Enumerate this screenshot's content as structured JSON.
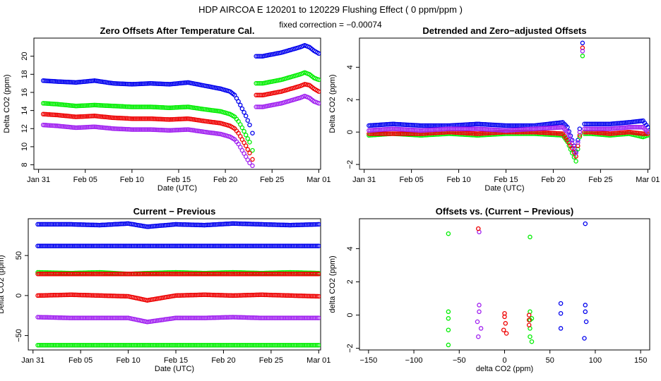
{
  "figure": {
    "title": "HDP    AIRCOA E    120201 to 120229    Flushing Effect ( 0 ppm/ppm )",
    "subtitle": "fixed correction = −0.00074"
  },
  "colors": {
    "blue": "#0000ee",
    "green": "#00ee00",
    "red": "#ee0000",
    "purple": "#a020f0"
  },
  "chart_data": [
    {
      "id": "p1",
      "type": "scatter",
      "title": "Zero Offsets After Temperature Cal.",
      "xlabel": "Date (UTC)",
      "ylabel": "Delta CO2 (ppm)",
      "xlim": [
        30.5,
        61.2
      ],
      "ylim": [
        7.5,
        22.0
      ],
      "xticks": [
        31,
        36,
        41,
        46,
        51,
        56,
        61
      ],
      "xticklabels": [
        "Jan 31",
        "Feb 05",
        "Feb 10",
        "Feb 15",
        "Feb 20",
        "Feb 25",
        "Mar 01"
      ],
      "yticks": [
        8,
        10,
        12,
        14,
        16,
        18,
        20
      ],
      "yticklabels": [
        "8",
        "10",
        "12",
        "14",
        "16",
        "18",
        "20"
      ],
      "series": [
        {
          "name": "blue",
          "color": "blue",
          "x": [
            31.5,
            33,
            35,
            37,
            39,
            41,
            43,
            45,
            47,
            49,
            50.5,
            51.5,
            52,
            52.4,
            52.8,
            53.2,
            53.6,
            53.9,
            54.3,
            55,
            56,
            57,
            58,
            59,
            59.5,
            60,
            60.5,
            61
          ],
          "y": [
            17.3,
            17.2,
            17.1,
            17.3,
            17.0,
            16.9,
            17.0,
            16.9,
            17.1,
            16.7,
            16.4,
            16.1,
            15.7,
            15.0,
            14.2,
            13.4,
            12.4,
            11.5,
            20.0,
            20.0,
            20.2,
            20.4,
            20.7,
            21.0,
            21.2,
            21.0,
            20.6,
            20.3
          ]
        },
        {
          "name": "green",
          "color": "green",
          "x": [
            31.5,
            33,
            35,
            37,
            39,
            41,
            43,
            45,
            47,
            49,
            50.5,
            51.5,
            52,
            52.4,
            52.8,
            53.2,
            53.6,
            53.9,
            54.3,
            55,
            56,
            57,
            58,
            59,
            59.5,
            60,
            60.5,
            61
          ],
          "y": [
            14.8,
            14.7,
            14.5,
            14.6,
            14.5,
            14.4,
            14.4,
            14.3,
            14.4,
            14.1,
            13.9,
            13.6,
            13.3,
            12.8,
            12.1,
            11.3,
            10.5,
            9.6,
            17.0,
            17.0,
            17.2,
            17.4,
            17.7,
            18.0,
            18.2,
            18.0,
            17.6,
            17.4
          ]
        },
        {
          "name": "red",
          "color": "red",
          "x": [
            31.5,
            33,
            35,
            37,
            39,
            41,
            43,
            45,
            47,
            49,
            50.5,
            51.5,
            52,
            52.4,
            52.8,
            53.2,
            53.6,
            53.9,
            54.3,
            55,
            56,
            57,
            58,
            59,
            59.5,
            60,
            60.5,
            61
          ],
          "y": [
            13.6,
            13.5,
            13.3,
            13.4,
            13.2,
            13.1,
            13.1,
            13.0,
            13.1,
            12.8,
            12.6,
            12.3,
            12.0,
            11.5,
            10.8,
            10.1,
            9.3,
            8.6,
            15.7,
            15.7,
            15.9,
            16.1,
            16.4,
            16.7,
            16.9,
            16.8,
            16.4,
            16.1
          ]
        },
        {
          "name": "purple",
          "color": "purple",
          "x": [
            31.5,
            33,
            35,
            37,
            39,
            41,
            43,
            45,
            47,
            49,
            50.5,
            51.5,
            52,
            52.4,
            52.8,
            53.2,
            53.6,
            53.9,
            54.3,
            55,
            56,
            57,
            58,
            59,
            59.5,
            60,
            60.5,
            61
          ],
          "y": [
            12.4,
            12.3,
            12.1,
            12.2,
            12.0,
            11.9,
            11.9,
            11.8,
            11.9,
            11.6,
            11.4,
            11.1,
            10.8,
            10.3,
            9.6,
            8.9,
            8.2,
            7.9,
            14.4,
            14.4,
            14.6,
            14.8,
            15.1,
            15.4,
            15.6,
            15.4,
            15.0,
            14.8
          ]
        }
      ]
    },
    {
      "id": "p2",
      "type": "scatter",
      "title": "Detrended and Zero−adjusted Offsets",
      "xlabel": "Date (UTC)",
      "ylabel": "Delta CO2 (ppm)",
      "xlim": [
        30.5,
        61.2
      ],
      "ylim": [
        -2.3,
        5.8
      ],
      "xticks": [
        31,
        36,
        41,
        46,
        51,
        56,
        61
      ],
      "xticklabels": [
        "Jan 31",
        "Feb 05",
        "Feb 10",
        "Feb 15",
        "Feb 20",
        "Feb 25",
        "Mar 01"
      ],
      "yticks": [
        -2,
        0,
        2,
        4
      ],
      "yticklabels": [
        "−2",
        "0",
        "2",
        "4"
      ],
      "series": [
        {
          "name": "blue",
          "color": "blue",
          "x": [
            31.5,
            34,
            37,
            40,
            43,
            46,
            49,
            52,
            52.5,
            53,
            53.4,
            53.8,
            54.1,
            54.3,
            55,
            57,
            59,
            60.5,
            61
          ],
          "y": [
            0.4,
            0.5,
            0.4,
            0.4,
            0.5,
            0.4,
            0.4,
            0.6,
            0.3,
            -0.5,
            -1.2,
            0.2,
            5.5,
            0.5,
            0.5,
            0.5,
            0.6,
            0.7,
            0.3
          ]
        },
        {
          "name": "green",
          "color": "green",
          "x": [
            31.5,
            34,
            37,
            40,
            43,
            46,
            49,
            52,
            52.5,
            53,
            53.4,
            53.8,
            54.1,
            54.3,
            55,
            57,
            59,
            60.5,
            61
          ],
          "y": [
            -0.2,
            -0.1,
            -0.2,
            -0.1,
            -0.2,
            -0.1,
            -0.1,
            -0.2,
            -0.6,
            -1.3,
            -1.8,
            -0.3,
            4.7,
            -0.1,
            -0.1,
            -0.2,
            -0.1,
            -0.3,
            -0.2
          ]
        },
        {
          "name": "red",
          "color": "red",
          "x": [
            31.5,
            34,
            37,
            40,
            43,
            46,
            49,
            52,
            52.5,
            53,
            53.4,
            53.8,
            54.1,
            54.3,
            55,
            57,
            59,
            60.5,
            61
          ],
          "y": [
            -0.1,
            -0.1,
            -0.1,
            0.0,
            -0.1,
            0.0,
            0.0,
            -0.1,
            -0.5,
            -1.0,
            -1.5,
            -0.2,
            5.2,
            0.0,
            0.0,
            -0.1,
            0.0,
            -0.1,
            -0.1
          ]
        },
        {
          "name": "purple",
          "color": "purple",
          "x": [
            31.5,
            34,
            37,
            40,
            43,
            46,
            49,
            52,
            52.5,
            53,
            53.4,
            53.8,
            54.1,
            54.3,
            55,
            57,
            59,
            60.5,
            61
          ],
          "y": [
            0.1,
            0.2,
            0.1,
            0.2,
            0.2,
            0.1,
            0.2,
            0.3,
            0.0,
            -0.7,
            -1.3,
            0.0,
            5.0,
            0.2,
            0.2,
            0.2,
            0.3,
            0.3,
            0.0
          ]
        }
      ]
    },
    {
      "id": "p3",
      "type": "scatter",
      "title": "Current − Previous",
      "xlabel": "Date (UTC)",
      "ylabel": "Delta CO2 (ppm)",
      "xlim": [
        30.5,
        61.2
      ],
      "ylim": [
        -68,
        96
      ],
      "xticks": [
        31,
        36,
        41,
        46,
        51,
        56,
        61
      ],
      "xticklabels": [
        "Jan 31",
        "Feb 05",
        "Feb 10",
        "Feb 15",
        "Feb 20",
        "Feb 25",
        "Mar 01"
      ],
      "yticks": [
        -50,
        0,
        50
      ],
      "yticklabels": [
        "−50",
        "0",
        "50"
      ],
      "series": [
        {
          "name": "blue",
          "color": "blue",
          "x": [
            31.5,
            35,
            38,
            41,
            43,
            46,
            49,
            52,
            55,
            58,
            61
          ],
          "y": [
            89,
            89,
            88,
            90,
            86,
            89,
            88,
            90,
            89,
            88,
            89
          ]
        },
        {
          "name": "blue-2",
          "color": "blue",
          "x": [
            31.5,
            35,
            38,
            41,
            43,
            46,
            49,
            52,
            55,
            58,
            61
          ],
          "y": [
            62,
            62,
            62,
            62,
            62,
            62,
            62,
            62,
            62,
            62,
            62
          ]
        },
        {
          "name": "green",
          "color": "green",
          "x": [
            31.5,
            35,
            38,
            41,
            43,
            46,
            49,
            52,
            55,
            58,
            61
          ],
          "y": [
            29,
            28,
            29,
            27,
            28,
            29,
            28,
            29,
            28,
            29,
            28
          ]
        },
        {
          "name": "red-2",
          "color": "red",
          "x": [
            31.5,
            35,
            38,
            41,
            43,
            46,
            49,
            52,
            55,
            58,
            61
          ],
          "y": [
            27,
            27,
            27,
            27,
            27,
            27,
            27,
            27,
            27,
            27,
            27
          ]
        },
        {
          "name": "red",
          "color": "red",
          "x": [
            31.5,
            35,
            38,
            41,
            43,
            46,
            49,
            52,
            55,
            58,
            61
          ],
          "y": [
            0,
            1,
            0,
            -1,
            -6,
            0,
            1,
            0,
            1,
            0,
            -1
          ]
        },
        {
          "name": "purple",
          "color": "purple",
          "x": [
            31.5,
            35,
            38,
            41,
            43,
            46,
            49,
            52,
            55,
            58,
            61
          ],
          "y": [
            -27,
            -28,
            -28,
            -28,
            -33,
            -28,
            -28,
            -27,
            -28,
            -28,
            -28
          ]
        },
        {
          "name": "green-2",
          "color": "green",
          "x": [
            31.5,
            35,
            38,
            41,
            43,
            46,
            49,
            52,
            55,
            58,
            61
          ],
          "y": [
            -62,
            -62,
            -62,
            -62,
            -62,
            -62,
            -62,
            -62,
            -62,
            -62,
            -62
          ]
        }
      ]
    },
    {
      "id": "p4",
      "type": "scatter",
      "title": "Offsets vs. (Current − Previous)",
      "xlabel": "delta CO2 (ppm)",
      "ylabel": "delta CO2 (ppm)",
      "xlim": [
        -160,
        160
      ],
      "ylim": [
        -2.1,
        5.8
      ],
      "xticks": [
        -150,
        -100,
        -50,
        0,
        50,
        100,
        150
      ],
      "xticklabels": [
        "−150",
        "−100",
        "−50",
        "0",
        "50",
        "100",
        "150"
      ],
      "yticks": [
        -2,
        0,
        2,
        4
      ],
      "yticklabels": [
        "−2",
        "0",
        "2",
        "4"
      ],
      "series": [
        {
          "name": "green",
          "color": "green",
          "x": [
            -62,
            -62,
            -62,
            -62,
            -62,
            28,
            28,
            28,
            28,
            28,
            30,
            30
          ],
          "y": [
            4.9,
            0.2,
            -0.2,
            -0.9,
            -1.8,
            4.7,
            0.2,
            -0.3,
            -0.8,
            -1.3,
            -0.2,
            -1.6
          ]
        },
        {
          "name": "purple",
          "color": "purple",
          "x": [
            -28,
            -28,
            -28,
            -30,
            -26,
            -29
          ],
          "y": [
            5.0,
            0.6,
            0.2,
            -0.4,
            -0.8,
            -1.3
          ]
        },
        {
          "name": "red",
          "color": "red",
          "x": [
            -29,
            0,
            0,
            1,
            -1,
            2,
            27,
            27,
            27
          ],
          "y": [
            5.2,
            0.1,
            -0.1,
            -0.5,
            -0.9,
            -1.1,
            0.0,
            -0.3,
            -0.6
          ]
        },
        {
          "name": "blue",
          "color": "blue",
          "x": [
            62,
            62,
            62,
            89,
            89,
            89,
            90,
            88
          ],
          "y": [
            0.7,
            0.1,
            -0.8,
            5.5,
            0.6,
            0.2,
            -0.4,
            -1.4
          ]
        }
      ]
    }
  ]
}
